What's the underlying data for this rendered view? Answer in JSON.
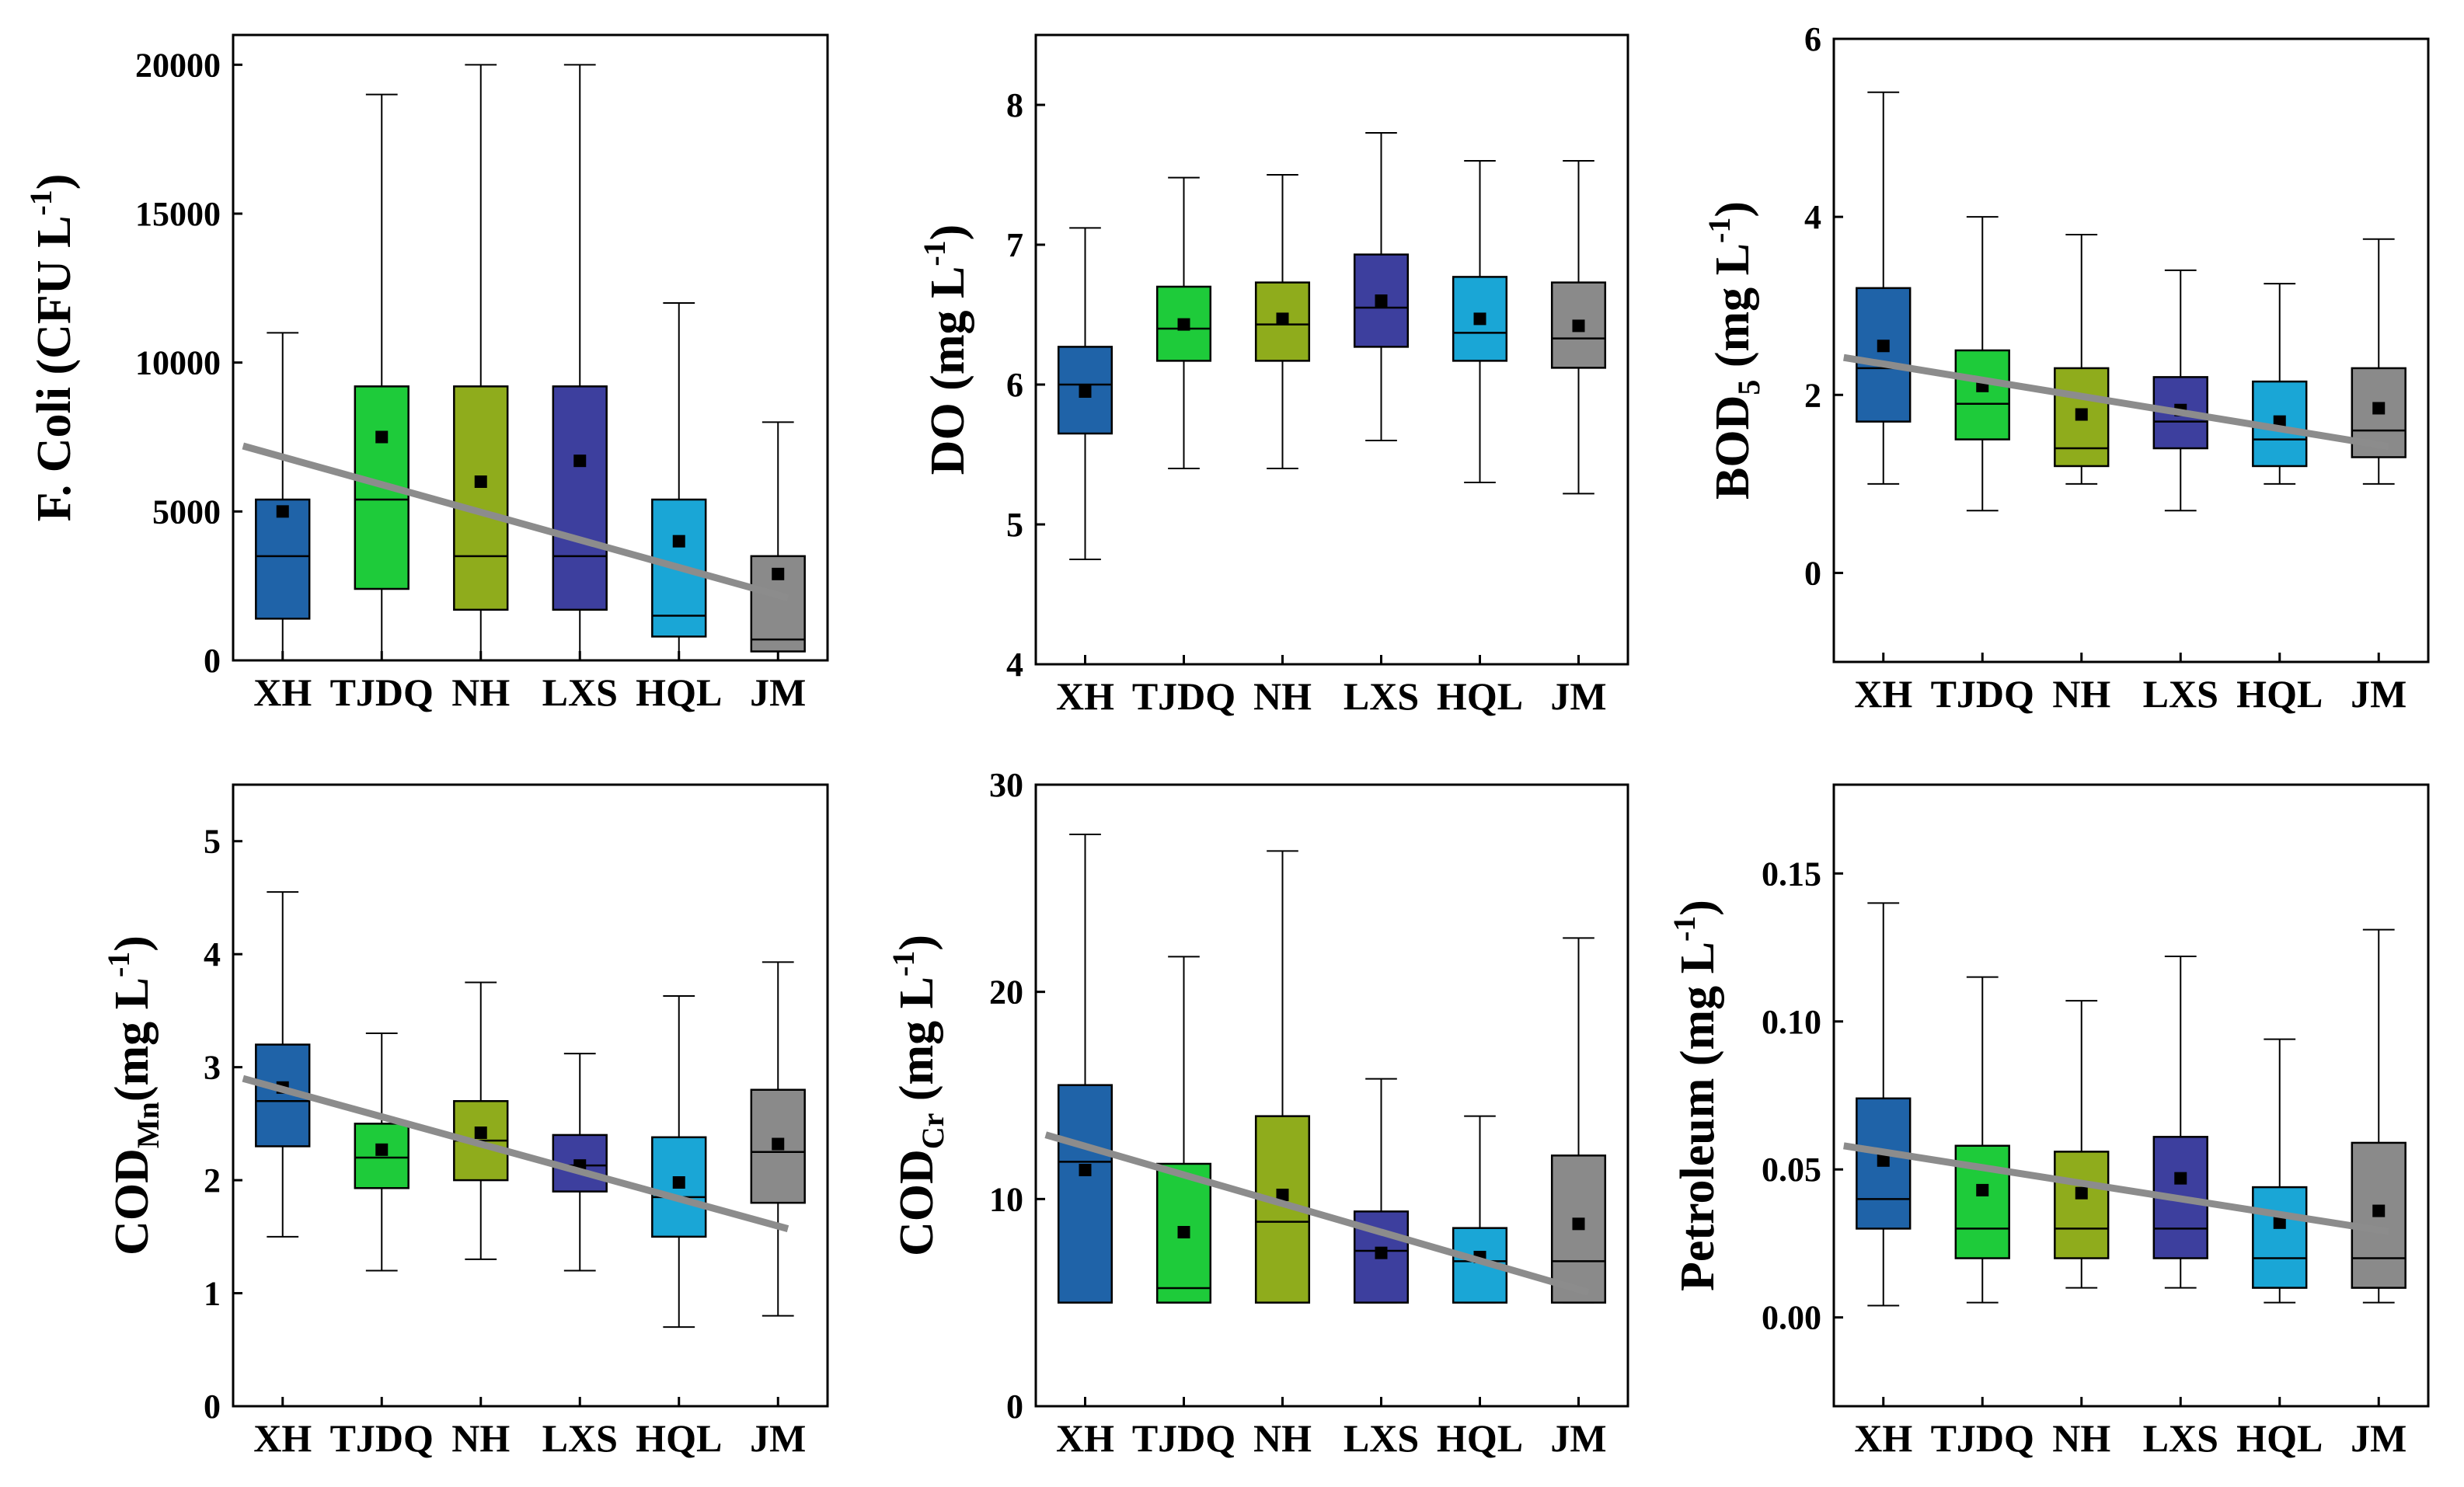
{
  "chart_data": [
    {
      "type": "box",
      "ylabel": {
        "main": "F. Coli (CFU L",
        "sup": "-1",
        "close": ")"
      },
      "ylim": [
        0,
        21000
      ],
      "yticks": [
        0,
        5000,
        10000,
        15000,
        20000
      ],
      "categories": [
        "XH",
        "TJDQ",
        "NH",
        "LXS",
        "HQL",
        "JM"
      ],
      "colors": [
        "#1f63a8",
        "#1ecb3a",
        "#8fac1c",
        "#3d3f9e",
        "#1aa6d6",
        "#8a8a8a"
      ],
      "boxes": [
        {
          "min": 0,
          "q1": 1400,
          "median": 3500,
          "q3": 5400,
          "max": 11000,
          "mean": 5000
        },
        {
          "min": 0,
          "q1": 2400,
          "median": 5400,
          "q3": 9200,
          "max": 19000,
          "mean": 7500
        },
        {
          "min": 0,
          "q1": 1700,
          "median": 3500,
          "q3": 9200,
          "max": 20000,
          "mean": 6000
        },
        {
          "min": 0,
          "q1": 1700,
          "median": 3500,
          "q3": 9200,
          "max": 20000,
          "mean": 6700
        },
        {
          "min": 0,
          "q1": 800,
          "median": 1500,
          "q3": 5400,
          "max": 12000,
          "mean": 4000
        },
        {
          "min": 0,
          "q1": 300,
          "median": 700,
          "q3": 3500,
          "max": 8000,
          "mean": 2900
        }
      ],
      "trend": [
        7200,
        2100
      ]
    },
    {
      "type": "box",
      "ylabel": {
        "main": "DO (mg L",
        "sup": "-1",
        "close": ")"
      },
      "ylim": [
        4,
        8.5
      ],
      "yticks": [
        4,
        5,
        6,
        7,
        8
      ],
      "categories": [
        "XH",
        "TJDQ",
        "NH",
        "LXS",
        "HQL",
        "JM"
      ],
      "colors": [
        "#1f63a8",
        "#1ecb3a",
        "#8fac1c",
        "#3d3f9e",
        "#1aa6d6",
        "#8a8a8a"
      ],
      "boxes": [
        {
          "min": 4.75,
          "q1": 5.65,
          "median": 6.0,
          "q3": 6.27,
          "max": 7.12,
          "mean": 5.95
        },
        {
          "min": 5.4,
          "q1": 6.17,
          "median": 6.4,
          "q3": 6.7,
          "max": 7.48,
          "mean": 6.43
        },
        {
          "min": 5.4,
          "q1": 6.17,
          "median": 6.43,
          "q3": 6.73,
          "max": 7.5,
          "mean": 6.47
        },
        {
          "min": 5.6,
          "q1": 6.27,
          "median": 6.55,
          "q3": 6.93,
          "max": 7.8,
          "mean": 6.6
        },
        {
          "min": 5.3,
          "q1": 6.17,
          "median": 6.37,
          "q3": 6.77,
          "max": 7.6,
          "mean": 6.47
        },
        {
          "min": 5.22,
          "q1": 6.12,
          "median": 6.33,
          "q3": 6.73,
          "max": 7.6,
          "mean": 6.42
        }
      ],
      "trend": null
    },
    {
      "type": "box",
      "ylabel": {
        "main": "BOD",
        "sub": "5",
        "mid": " (mg L",
        "sup": "-1",
        "close": ")"
      },
      "ylim": [
        -1,
        6
      ],
      "yticks": [
        0,
        2,
        4,
        6
      ],
      "categories": [
        "XH",
        "TJDQ",
        "NH",
        "LXS",
        "HQL",
        "JM"
      ],
      "colors": [
        "#1f63a8",
        "#1ecb3a",
        "#8fac1c",
        "#3d3f9e",
        "#1aa6d6",
        "#8a8a8a"
      ],
      "boxes": [
        {
          "min": 1.0,
          "q1": 1.7,
          "median": 2.3,
          "q3": 3.2,
          "max": 5.4,
          "mean": 2.55
        },
        {
          "min": 0.7,
          "q1": 1.5,
          "median": 1.9,
          "q3": 2.5,
          "max": 4.0,
          "mean": 2.1
        },
        {
          "min": 1.0,
          "q1": 1.2,
          "median": 1.4,
          "q3": 2.3,
          "max": 3.8,
          "mean": 1.78
        },
        {
          "min": 0.7,
          "q1": 1.4,
          "median": 1.7,
          "q3": 2.2,
          "max": 3.4,
          "mean": 1.83
        },
        {
          "min": 1.0,
          "q1": 1.2,
          "median": 1.5,
          "q3": 2.15,
          "max": 3.25,
          "mean": 1.7
        },
        {
          "min": 1.0,
          "q1": 1.3,
          "median": 1.6,
          "q3": 2.3,
          "max": 3.75,
          "mean": 1.85
        }
      ],
      "trend": [
        2.42,
        1.42
      ]
    },
    {
      "type": "box",
      "ylabel": {
        "main": "COD",
        "sub": "Mn",
        "mid": "(mg L",
        "sup": "-1",
        "close": ")"
      },
      "ylim": [
        0,
        5.5
      ],
      "yticks": [
        0,
        1,
        2,
        3,
        4,
        5
      ],
      "categories": [
        "XH",
        "TJDQ",
        "NH",
        "LXS",
        "HQL",
        "JM"
      ],
      "colors": [
        "#1f63a8",
        "#1ecb3a",
        "#8fac1c",
        "#3d3f9e",
        "#1aa6d6",
        "#8a8a8a"
      ],
      "boxes": [
        {
          "min": 1.5,
          "q1": 2.3,
          "median": 2.7,
          "q3": 3.2,
          "max": 4.55,
          "mean": 2.82
        },
        {
          "min": 1.2,
          "q1": 1.93,
          "median": 2.2,
          "q3": 2.5,
          "max": 3.3,
          "mean": 2.27
        },
        {
          "min": 1.3,
          "q1": 2.0,
          "median": 2.35,
          "q3": 2.7,
          "max": 3.75,
          "mean": 2.42
        },
        {
          "min": 1.2,
          "q1": 1.9,
          "median": 2.13,
          "q3": 2.4,
          "max": 3.12,
          "mean": 2.13
        },
        {
          "min": 0.7,
          "q1": 1.5,
          "median": 1.85,
          "q3": 2.38,
          "max": 3.63,
          "mean": 1.98
        },
        {
          "min": 0.8,
          "q1": 1.8,
          "median": 2.25,
          "q3": 2.8,
          "max": 3.93,
          "mean": 2.32
        }
      ],
      "trend": [
        2.9,
        1.57
      ]
    },
    {
      "type": "box",
      "ylabel": {
        "main": "COD",
        "sub": "Cr",
        "mid": " (mg L",
        "sup": "-1",
        "close": ")"
      },
      "ylim": [
        0,
        30
      ],
      "yticks": [
        0,
        10,
        20,
        30
      ],
      "categories": [
        "XH",
        "TJDQ",
        "NH",
        "LXS",
        "HQL",
        "JM"
      ],
      "colors": [
        "#1f63a8",
        "#1ecb3a",
        "#8fac1c",
        "#3d3f9e",
        "#1aa6d6",
        "#8a8a8a"
      ],
      "boxes": [
        {
          "min": 5,
          "q1": 5,
          "median": 11.8,
          "q3": 15.5,
          "max": 27.6,
          "mean": 11.4
        },
        {
          "min": 5,
          "q1": 5,
          "median": 5.7,
          "q3": 11.7,
          "max": 21.7,
          "mean": 8.4
        },
        {
          "min": 5,
          "q1": 5,
          "median": 8.9,
          "q3": 14.0,
          "max": 26.8,
          "mean": 10.2
        },
        {
          "min": 5,
          "q1": 5,
          "median": 7.5,
          "q3": 9.4,
          "max": 15.8,
          "mean": 7.4
        },
        {
          "min": 5,
          "q1": 5,
          "median": 7.0,
          "q3": 8.6,
          "max": 14.0,
          "mean": 7.2
        },
        {
          "min": 5,
          "q1": 5,
          "median": 7.0,
          "q3": 12.1,
          "max": 22.6,
          "mean": 8.8
        }
      ],
      "trend": [
        13.1,
        5.5
      ]
    },
    {
      "type": "box",
      "ylabel": {
        "main": "Petroleum (mg L",
        "sup": "-1",
        "close": ")"
      },
      "ylim": [
        -0.03,
        0.18
      ],
      "yticks": [
        0.0,
        0.05,
        0.1,
        0.15
      ],
      "yticklabels": [
        "0.00",
        "0.05",
        "0.10",
        "0.15"
      ],
      "categories": [
        "XH",
        "TJDQ",
        "NH",
        "LXS",
        "HQL",
        "JM"
      ],
      "colors": [
        "#1f63a8",
        "#1ecb3a",
        "#8fac1c",
        "#3d3f9e",
        "#1aa6d6",
        "#8a8a8a"
      ],
      "boxes": [
        {
          "min": 0.004,
          "q1": 0.03,
          "median": 0.04,
          "q3": 0.074,
          "max": 0.14,
          "mean": 0.053
        },
        {
          "min": 0.005,
          "q1": 0.02,
          "median": 0.03,
          "q3": 0.058,
          "max": 0.115,
          "mean": 0.043
        },
        {
          "min": 0.01,
          "q1": 0.02,
          "median": 0.03,
          "q3": 0.056,
          "max": 0.107,
          "mean": 0.042
        },
        {
          "min": 0.01,
          "q1": 0.02,
          "median": 0.03,
          "q3": 0.061,
          "max": 0.122,
          "mean": 0.047
        },
        {
          "min": 0.005,
          "q1": 0.01,
          "median": 0.02,
          "q3": 0.044,
          "max": 0.094,
          "mean": 0.032
        },
        {
          "min": 0.005,
          "q1": 0.01,
          "median": 0.02,
          "q3": 0.059,
          "max": 0.131,
          "mean": 0.036
        }
      ],
      "trend": [
        0.058,
        0.029
      ]
    }
  ]
}
